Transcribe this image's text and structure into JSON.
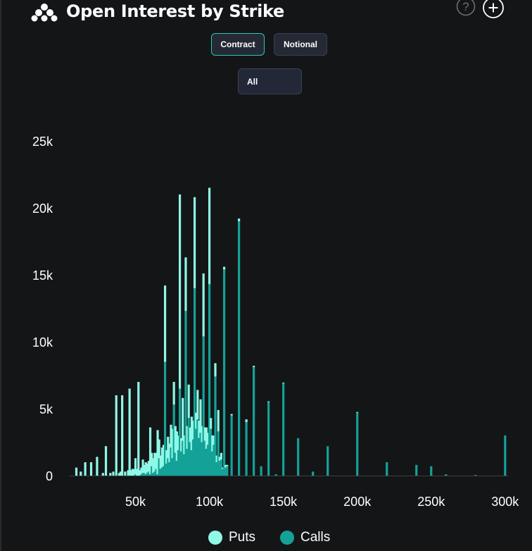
{
  "header": {
    "title": "Open Interest by Strike",
    "icons": [
      "logo-icon",
      "help-icon",
      "add-icon"
    ]
  },
  "controls": {
    "toggle": {
      "options": [
        "Contract",
        "Notional"
      ],
      "selected": "Contract"
    },
    "filter": {
      "value": "All"
    }
  },
  "legend": {
    "items": [
      "Puts",
      "Calls"
    ]
  },
  "colors": {
    "puts": "#8ff8e6",
    "calls": "#14a298",
    "background": "#141517",
    "accent": "#2cc7b7"
  },
  "chart_data": {
    "type": "bar",
    "stacked": true,
    "xlim": [
      5000,
      302000
    ],
    "ylim": [
      0,
      25000
    ],
    "xticks": [
      50000,
      100000,
      150000,
      200000,
      250000,
      300000
    ],
    "xtick_labels": [
      "50k",
      "100k",
      "150k",
      "200k",
      "250k",
      "300k"
    ],
    "yticks": [
      0,
      5000,
      10000,
      15000,
      20000,
      25000
    ],
    "ytick_labels": [
      "0",
      "5k",
      "10k",
      "15k",
      "20k",
      "25k"
    ],
    "legend_position": "bottom-center",
    "grid": false,
    "series": [
      {
        "name": "Puts",
        "x": [
          10000,
          13000,
          16000,
          20000,
          24000,
          28000,
          30000,
          33000,
          35000,
          37000,
          39000,
          40000,
          41000,
          43000,
          45000,
          46000,
          47000,
          48000,
          49000,
          50000,
          51000,
          52000,
          53000,
          54000,
          55000,
          56000,
          57000,
          58000,
          59000,
          60000,
          61000,
          62000,
          63000,
          64000,
          65000,
          66000,
          67000,
          68000,
          69000,
          70000,
          71000,
          72000,
          73000,
          74000,
          75000,
          76000,
          77000,
          78000,
          79000,
          80000,
          81000,
          82000,
          83000,
          84000,
          85000,
          86000,
          87000,
          88000,
          89000,
          90000,
          91000,
          92000,
          93000,
          94000,
          95000,
          96000,
          97000,
          98000,
          99000,
          100000,
          101000,
          102000,
          103000,
          104000,
          105000,
          106000,
          107000,
          108000,
          109000,
          110000,
          111000,
          112000,
          115000,
          120000,
          125000,
          130000,
          135000,
          140000,
          145000,
          150000,
          160000,
          170000,
          180000,
          200000,
          220000,
          240000,
          250000,
          260000,
          280000,
          300000
        ],
        "values": [
          600,
          300,
          1000,
          1000,
          1400,
          200,
          2200,
          200,
          300,
          6000,
          200,
          300,
          6000,
          300,
          400,
          6500,
          400,
          500,
          500,
          1200,
          500,
          7000,
          400,
          500,
          1000,
          600,
          900,
          700,
          800,
          3500,
          1000,
          1100,
          1400,
          1200,
          3300,
          1400,
          1000,
          1500,
          1600,
          5700,
          1000,
          1600,
          1400,
          1700,
          2200,
          1700,
          2000,
          2200,
          1100,
          14500,
          1000,
          3200,
          1400,
          4000,
          1700,
          2500,
          1100,
          2500,
          1400,
          6800,
          1200,
          2200,
          1300,
          2500,
          1200,
          4700,
          1000,
          1600,
          900,
          7200,
          800,
          1200,
          700,
          1000,
          500,
          1600,
          300,
          500,
          100,
          200,
          200,
          100,
          100,
          200,
          200,
          100,
          0,
          50,
          0,
          50,
          0,
          0,
          0,
          50,
          0,
          0,
          0,
          0,
          0,
          0
        ]
      },
      {
        "name": "Calls",
        "x": [
          10000,
          13000,
          16000,
          20000,
          24000,
          28000,
          30000,
          33000,
          35000,
          37000,
          39000,
          40000,
          41000,
          43000,
          45000,
          46000,
          47000,
          48000,
          49000,
          50000,
          51000,
          52000,
          53000,
          54000,
          55000,
          56000,
          57000,
          58000,
          59000,
          60000,
          61000,
          62000,
          63000,
          64000,
          65000,
          66000,
          67000,
          68000,
          69000,
          70000,
          71000,
          72000,
          73000,
          74000,
          75000,
          76000,
          77000,
          78000,
          79000,
          80000,
          81000,
          82000,
          83000,
          84000,
          85000,
          86000,
          87000,
          88000,
          89000,
          90000,
          91000,
          92000,
          93000,
          94000,
          95000,
          96000,
          97000,
          98000,
          99000,
          100000,
          101000,
          102000,
          103000,
          104000,
          105000,
          106000,
          107000,
          108000,
          109000,
          110000,
          111000,
          112000,
          115000,
          120000,
          125000,
          130000,
          135000,
          140000,
          145000,
          150000,
          160000,
          170000,
          180000,
          200000,
          220000,
          240000,
          250000,
          260000,
          280000,
          300000
        ],
        "values": [
          0,
          0,
          0,
          0,
          0,
          0,
          0,
          0,
          0,
          0,
          0,
          0,
          0,
          0,
          0,
          0,
          0,
          0,
          0,
          100,
          0,
          0,
          0,
          100,
          200,
          200,
          100,
          200,
          300,
          100,
          700,
          200,
          300,
          500,
          100,
          1300,
          500,
          600,
          700,
          8500,
          900,
          1300,
          1000,
          2100,
          1300,
          5300,
          1700,
          1100,
          1900,
          6500,
          1800,
          2600,
          1600,
          12300,
          2000,
          4300,
          2500,
          1900,
          2700,
          14000,
          3500,
          4200,
          2800,
          3200,
          2500,
          10400,
          2600,
          2000,
          2300,
          14300,
          3500,
          1800,
          2300,
          7400,
          1000,
          3300,
          1100,
          1200,
          500,
          15400,
          600,
          700,
          4500,
          19000,
          4000,
          8100,
          700,
          5500,
          100,
          6900,
          2800,
          300,
          2200,
          4700,
          1000,
          800,
          700,
          100,
          50,
          3000
        ]
      }
    ]
  }
}
